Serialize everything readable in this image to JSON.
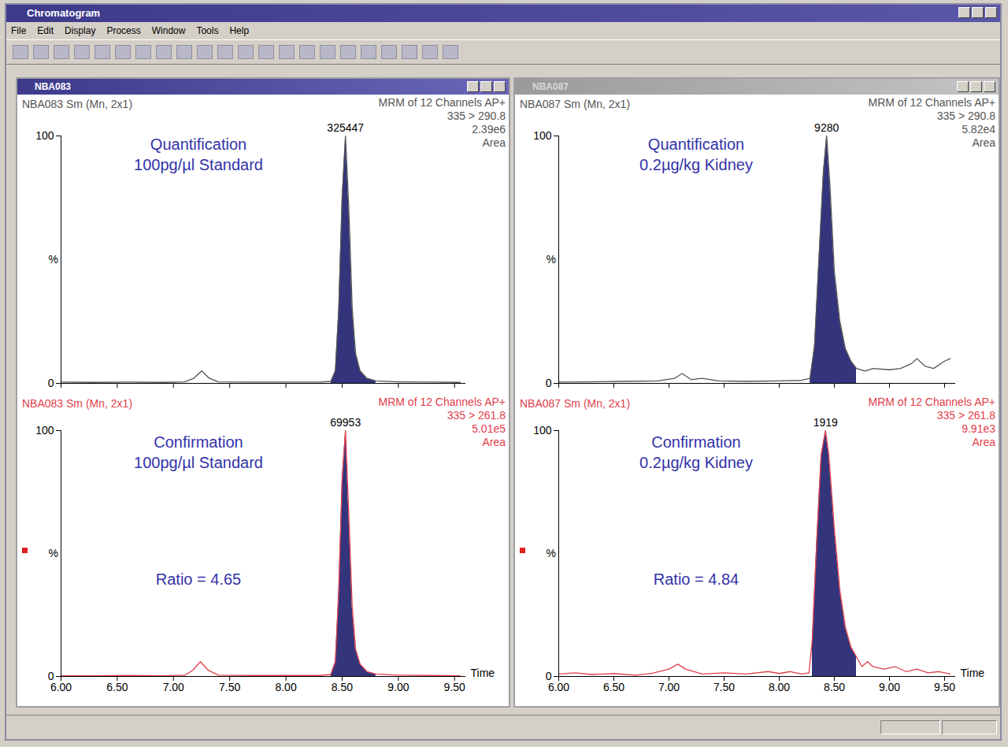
{
  "window": {
    "title": "Chromatogram",
    "menu": [
      "File",
      "Edit",
      "Display",
      "Process",
      "Window",
      "Tools",
      "Help"
    ],
    "panels": [
      "NBA083",
      "NBA087"
    ]
  },
  "chart_data": [
    {
      "type": "line",
      "header_left": "NBA083 Sm (Mn, 2x1)",
      "header_right": [
        "MRM of 12 Channels AP+",
        "335 > 290.8",
        "2.39e6",
        "Area"
      ],
      "annotation": [
        "Quantification",
        "100pg/µl Standard"
      ],
      "peak_label": 325447,
      "peak_x": 8.53,
      "color": "#555555",
      "x": [
        6.0,
        6.3,
        6.6,
        6.9,
        7.1,
        7.18,
        7.25,
        7.32,
        7.4,
        7.7,
        8.0,
        8.3,
        8.4,
        8.44,
        8.47,
        8.5,
        8.53,
        8.56,
        8.59,
        8.62,
        8.66,
        8.72,
        8.8,
        9.0,
        9.3,
        9.55
      ],
      "values": [
        0.5,
        0.4,
        0.5,
        0.4,
        0.6,
        2,
        5,
        2,
        0.6,
        0.5,
        0.5,
        0.5,
        0.8,
        5,
        30,
        75,
        100,
        70,
        30,
        12,
        5,
        2,
        1,
        0.6,
        0.5,
        0.4
      ],
      "integration_range": [
        8.4,
        8.8
      ],
      "xlim": [
        6,
        9.6
      ],
      "ylim": [
        0,
        100
      ],
      "xticks": [
        {
          "value": 6,
          "label": "6.00"
        },
        {
          "value": 6.5,
          "label": "6.50"
        },
        {
          "value": 7,
          "label": "7.00"
        },
        {
          "value": 7.5,
          "label": "7.50"
        },
        {
          "value": 8,
          "label": "8.00"
        },
        {
          "value": 8.5,
          "label": "8.50"
        },
        {
          "value": 9,
          "label": "9.00"
        },
        {
          "value": 9.5,
          "label": "9.50"
        }
      ],
      "yticks": [
        0,
        100
      ],
      "ylabel": "%",
      "tick_labels": "y"
    },
    {
      "type": "line",
      "header_left": "NBA083 Sm (Mn, 2x1)",
      "header_right": [
        "MRM of 12 Channels AP+",
        "335 > 261.8",
        "5.01e5",
        "Area"
      ],
      "annotation": [
        "Confirmation",
        "100pg/µl Standard"
      ],
      "ratio": "Ratio = 4.65",
      "peak_label": 69953,
      "peak_x": 8.53,
      "color": "#e0404a",
      "x": [
        6.0,
        6.3,
        6.6,
        6.9,
        7.1,
        7.17,
        7.24,
        7.31,
        7.4,
        7.7,
        8.0,
        8.3,
        8.4,
        8.44,
        8.47,
        8.5,
        8.53,
        8.56,
        8.59,
        8.62,
        8.66,
        8.72,
        8.8,
        9.0,
        9.3,
        9.55
      ],
      "values": [
        0.3,
        0.3,
        0.4,
        0.3,
        0.5,
        2.5,
        6,
        2.5,
        0.5,
        0.4,
        0.4,
        0.4,
        0.8,
        6,
        35,
        80,
        100,
        65,
        28,
        11,
        5,
        2,
        1,
        0.5,
        0.4,
        0.3
      ],
      "integration_range": [
        8.4,
        8.8
      ],
      "xlim": [
        6,
        9.6
      ],
      "ylim": [
        0,
        100
      ],
      "xticks": [
        {
          "value": 6,
          "label": "6.00"
        },
        {
          "value": 6.5,
          "label": "6.50"
        },
        {
          "value": 7,
          "label": "7.00"
        },
        {
          "value": 7.5,
          "label": "7.50"
        },
        {
          "value": 8,
          "label": "8.00"
        },
        {
          "value": 8.5,
          "label": "8.50"
        },
        {
          "value": 9,
          "label": "9.00"
        },
        {
          "value": 9.5,
          "label": "9.50"
        }
      ],
      "yticks": [
        0,
        100
      ],
      "ylabel": "%",
      "xlabel": "Time"
    },
    {
      "type": "line",
      "header_left": "NBA087 Sm (Mn, 2x1)",
      "header_right": [
        "MRM of 12 Channels AP+",
        "335 > 290.8",
        "5.82e4",
        "Area"
      ],
      "annotation": [
        "Quantification",
        "0.2µg/kg Kidney"
      ],
      "peak_label": 9280,
      "peak_x": 8.43,
      "color": "#555555",
      "x": [
        6.0,
        6.3,
        6.6,
        6.9,
        7.05,
        7.12,
        7.2,
        7.3,
        7.45,
        7.7,
        8.0,
        8.2,
        8.28,
        8.32,
        8.36,
        8.4,
        8.43,
        8.46,
        8.5,
        8.55,
        8.6,
        8.65,
        8.7,
        8.78,
        8.85,
        9.0,
        9.1,
        9.2,
        9.25,
        9.32,
        9.4,
        9.5,
        9.55
      ],
      "values": [
        0.5,
        0.6,
        0.8,
        1,
        2,
        4,
        1.5,
        2,
        1,
        0.8,
        1,
        1.2,
        2,
        15,
        50,
        85,
        100,
        80,
        45,
        25,
        14,
        9,
        6,
        5,
        6,
        5.5,
        6,
        8,
        10,
        7,
        6,
        9,
        10
      ],
      "integration_range": [
        8.28,
        8.72
      ],
      "xlim": [
        6,
        9.6
      ],
      "ylim": [
        0,
        100
      ],
      "xticks": [
        {
          "value": 6,
          "label": "6.00"
        },
        {
          "value": 6.5,
          "label": "6.50"
        },
        {
          "value": 7,
          "label": "7.00"
        },
        {
          "value": 7.5,
          "label": "7.50"
        },
        {
          "value": 8,
          "label": "8.00"
        },
        {
          "value": 8.5,
          "label": "8.50"
        },
        {
          "value": 9,
          "label": "9.00"
        },
        {
          "value": 9.5,
          "label": "9.50"
        }
      ],
      "yticks": [
        0,
        100
      ],
      "ylabel": "%",
      "tick_labels": "y"
    },
    {
      "type": "line",
      "header_left": "NBA087 Sm (Mn, 2x1)",
      "header_right": [
        "MRM of 12 Channels AP+",
        "335 > 261.8",
        "9.91e3",
        "Area"
      ],
      "annotation": [
        "Confirmation",
        "0.2µg/kg Kidney"
      ],
      "ratio": "Ratio = 4.84",
      "peak_label": 1919,
      "peak_x": 8.42,
      "color": "#e0404a",
      "x": [
        6.0,
        6.15,
        6.3,
        6.5,
        6.7,
        6.85,
        7.0,
        7.08,
        7.15,
        7.3,
        7.5,
        7.7,
        7.9,
        8.0,
        8.1,
        8.2,
        8.27,
        8.3,
        8.34,
        8.38,
        8.42,
        8.45,
        8.5,
        8.55,
        8.6,
        8.65,
        8.7,
        8.75,
        8.8,
        8.85,
        8.95,
        9.05,
        9.15,
        9.25,
        9.35,
        9.45,
        9.55
      ],
      "values": [
        1,
        1.5,
        0.8,
        1.2,
        0.5,
        1.3,
        3,
        5,
        3,
        1,
        1.5,
        1,
        2,
        1.2,
        2,
        1,
        1.5,
        15,
        55,
        90,
        100,
        90,
        60,
        35,
        20,
        12,
        8,
        4,
        6,
        4,
        3,
        4,
        2,
        3,
        1.5,
        2,
        1
      ],
      "integration_range": [
        8.28,
        8.7
      ],
      "xlim": [
        6,
        9.6
      ],
      "ylim": [
        0,
        100
      ],
      "xticks": [
        {
          "value": 6,
          "label": "6.00"
        },
        {
          "value": 6.5,
          "label": "6.50"
        },
        {
          "value": 7,
          "label": "7.00"
        },
        {
          "value": 7.5,
          "label": "7.50"
        },
        {
          "value": 8,
          "label": "8.00"
        },
        {
          "value": 8.5,
          "label": "8.50"
        },
        {
          "value": 9,
          "label": "9.00"
        },
        {
          "value": 9.5,
          "label": "9.50"
        }
      ],
      "yticks": [
        0,
        100
      ],
      "ylabel": "%",
      "xlabel": "Time"
    }
  ]
}
